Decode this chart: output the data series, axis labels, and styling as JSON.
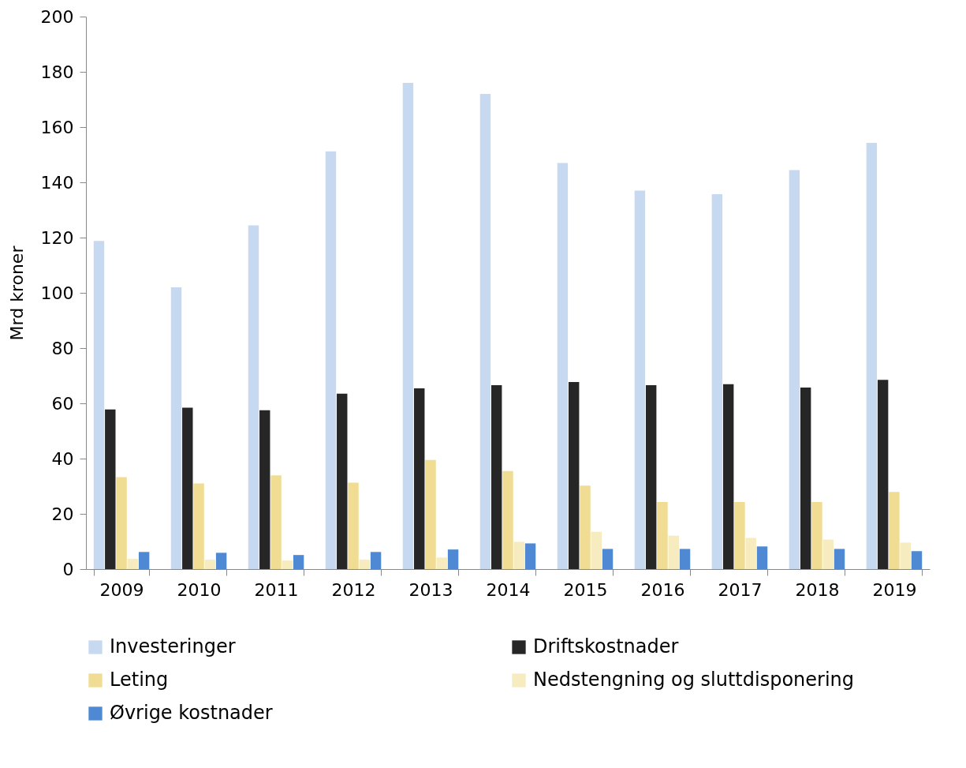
{
  "chart_data": {
    "type": "bar",
    "ylabel": "Mrd kroner",
    "categories": [
      "2009",
      "2010",
      "2011",
      "2012",
      "2013",
      "2014",
      "2015",
      "2016",
      "2017",
      "2018",
      "2019"
    ],
    "series": [
      {
        "name": "Investeringer",
        "color": "#c6d9f1",
        "values": [
          118.8,
          102,
          124.4,
          151.2,
          176,
          172,
          147,
          137,
          135.7,
          144.4,
          154.3
        ]
      },
      {
        "name": "Driftskostnader",
        "color": "#262626",
        "values": [
          57.8,
          58.4,
          57.5,
          63.5,
          65.4,
          66.6,
          67.7,
          66.6,
          66.9,
          65.7,
          68.5
        ]
      },
      {
        "name": "Leting",
        "color": "#f0dc92",
        "values": [
          33.3,
          31,
          33.9,
          31.3,
          39.5,
          35.5,
          30.2,
          24.3,
          24.3,
          24.3,
          27.9
        ]
      },
      {
        "name": "Nedstengning og sluttdisponering",
        "color": "#f7ecbf",
        "values": [
          3.7,
          3.4,
          3.1,
          3.4,
          4.2,
          9.9,
          13.5,
          12.1,
          11.3,
          10.7,
          9.6
        ]
      },
      {
        "name": "Øvrige kostnader",
        "color": "#4f89d3",
        "values": [
          6.2,
          5.9,
          5.1,
          6.2,
          7.1,
          9.3,
          7.3,
          7.3,
          8.2,
          7.3,
          6.5
        ]
      }
    ],
    "ylim": [
      0,
      200
    ],
    "yticks": [
      0,
      20,
      40,
      60,
      80,
      100,
      120,
      140,
      160,
      180,
      200
    ],
    "grid": false,
    "legend": "bottom"
  }
}
